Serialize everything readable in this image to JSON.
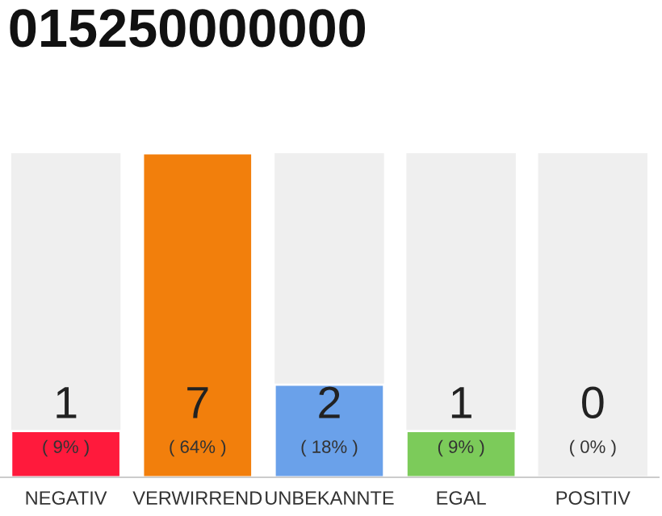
{
  "chart_data": {
    "type": "bar",
    "title": "015250000000",
    "categories": [
      "NEGATIV",
      "VERWIRREND",
      "UNBEKANNTE",
      "EGAL",
      "POSITIV"
    ],
    "values": [
      1,
      7,
      2,
      1,
      0
    ],
    "colors": [
      "#ff1a3c",
      "#f27f0c",
      "#6aa1ea",
      "#7ccb5a",
      null
    ],
    "ylim": [
      0,
      7
    ],
    "tick_labels": "x",
    "data_labels": true,
    "grid": false,
    "legend": false,
    "annotations": [
      "( 9% )",
      "( 64% )",
      "( 18% )",
      "( 9% )",
      "( 0% )"
    ]
  }
}
